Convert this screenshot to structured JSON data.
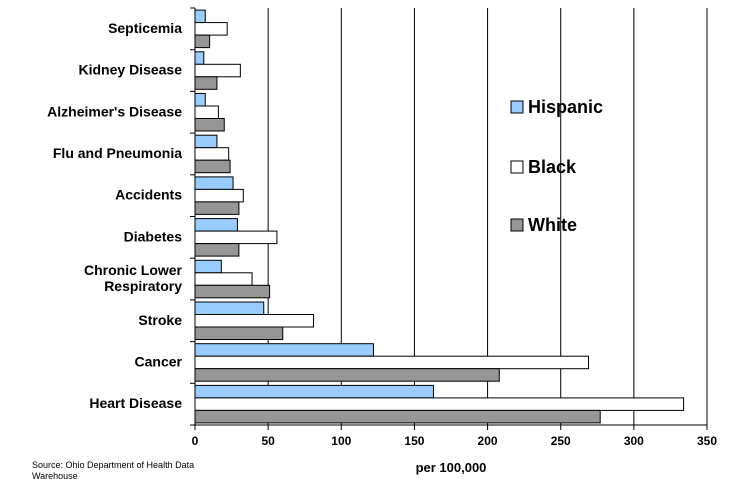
{
  "chart_data": {
    "type": "bar",
    "orientation": "horizontal",
    "xlabel": "per 100,000",
    "xlim": [
      0,
      350
    ],
    "xticks": [
      "0",
      "50",
      "100",
      "150",
      "200",
      "250",
      "300",
      "350"
    ],
    "grid": true,
    "legend_position": "right",
    "categories": [
      "Septicemia",
      "Kidney Disease",
      "Alzheimer's Disease",
      "Flu and Pneumonia",
      "Accidents",
      "Diabetes",
      [
        "Chronic Lower",
        "Respiratory"
      ],
      "Stroke",
      "Cancer",
      "Heart Disease"
    ],
    "series": [
      {
        "name": "Hispanic",
        "color": "#99ccff",
        "values": [
          7,
          6,
          7,
          15,
          26,
          29,
          18,
          47,
          122,
          163
        ]
      },
      {
        "name": "Black",
        "color": "#ffffff",
        "values": [
          22,
          31,
          16,
          23,
          33,
          56,
          39,
          81,
          269,
          334
        ]
      },
      {
        "name": "White",
        "color": "#969696",
        "values": [
          10,
          15,
          20,
          24,
          30,
          30,
          51,
          60,
          208,
          277
        ]
      }
    ]
  },
  "source_note": "Source: Ohio Department of Health Data Warehouse"
}
